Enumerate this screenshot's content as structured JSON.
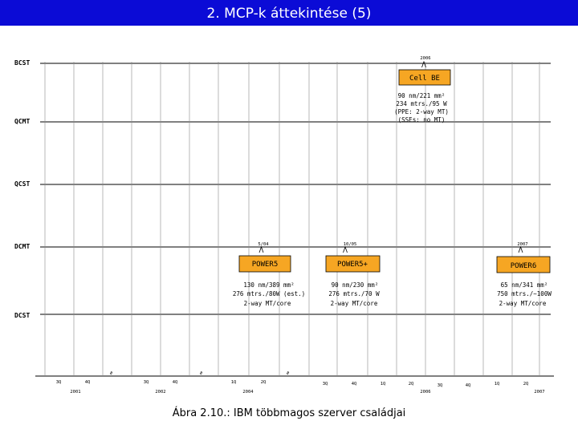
{
  "title": "2. MCP-k áttekintése (5)",
  "caption": "Ábra 2.10.: IBM többmagos szerver családjai",
  "rows": {
    "bcst": "BCST",
    "qcmt": "QCMT",
    "qcst": "QCST",
    "dcmt": "DCMT",
    "dcst": "DCST"
  },
  "chips": {
    "cell_be": {
      "date": "2006",
      "name": "Cell BE",
      "specs": [
        "90 nm/221 mm²",
        "234 mtrs./95 W",
        "(PPE: 2-way MT)",
        "(SSEs: no MT)"
      ],
      "fill": "#f6a623"
    },
    "power5": {
      "date": "5/04",
      "name": "POWER5",
      "specs": [
        "130 nm/389 mm²",
        "276 mtrs./80W (est.)",
        "2-way MT/core"
      ],
      "fill": "#f6a623"
    },
    "power5plus": {
      "date": "10/05",
      "name": "POWER5+",
      "specs": [
        "90 nm/230 mm²",
        "276 mtrs./70 W",
        "2-way MT/core"
      ],
      "fill": "#f6a623"
    },
    "power6": {
      "date": "2007",
      "name": "POWER6",
      "specs": [
        "65 nm/341 mm²",
        "750 mtrs./~100W",
        "2-way MT/core"
      ],
      "fill": "#f6a623"
    }
  },
  "timeline": {
    "break_mark": "≈",
    "quarters": [
      "3Q",
      "4Q",
      "3Q",
      "4Q",
      "1Q",
      "2Q",
      "3Q",
      "4Q",
      "1Q",
      "2Q",
      "3Q",
      "4Q",
      "1Q",
      "2Q"
    ],
    "years": [
      "2001",
      "2002",
      "2004",
      "2006",
      "2007"
    ]
  }
}
